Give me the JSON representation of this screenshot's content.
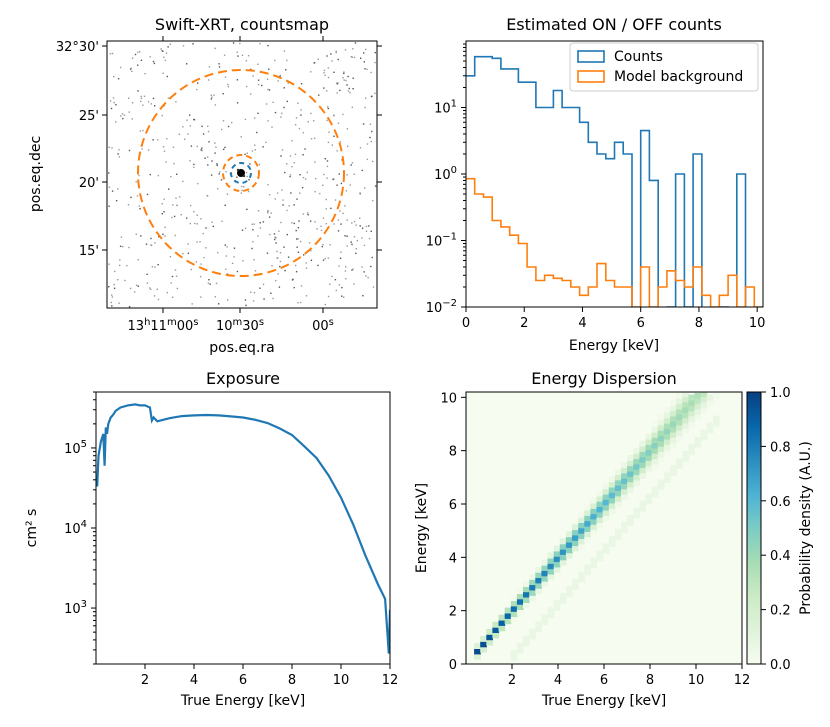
{
  "figure": {
    "panels": [
      "Swift-XRT, countsmap",
      "Estimated ON / OFF counts",
      "Exposure",
      "Energy Dispersion"
    ]
  },
  "chart_data": [
    {
      "type": "heatmap",
      "title": "Swift-XRT, countsmap",
      "xlabel": "pos.eq.ra",
      "ylabel": "pos.eq.dec",
      "x_ticks": [
        {
          "main": "13",
          "sup1": "h",
          "mid": "11",
          "sup2": "m",
          "tail": "00",
          "sup3": "s"
        },
        {
          "main": "10",
          "sup1": "m",
          "mid": "30",
          "sup2": "s",
          "tail": "",
          "sup3": ""
        },
        {
          "main": "00",
          "sup1": "s",
          "mid": "",
          "sup2": "",
          "tail": "",
          "sup3": ""
        }
      ],
      "y_ticks": [
        "32°30'",
        "25'",
        "20'",
        "15'"
      ],
      "regions": [
        {
          "name": "on-region",
          "color": "#1f77b4",
          "style": "dashed"
        },
        {
          "name": "off-inner",
          "color": "#ff7f0e",
          "style": "dashed"
        },
        {
          "name": "off-outer",
          "color": "#ff7f0e",
          "style": "dashed"
        }
      ]
    },
    {
      "type": "line",
      "drawstyle": "steps",
      "title": "Estimated ON / OFF counts",
      "xlabel": "Energy [keV]",
      "ylabel": "",
      "xlim": [
        0,
        10.2
      ],
      "ylim": [
        0.01,
        100
      ],
      "yscale": "log",
      "legend_position": "top-right",
      "x_ticks": [
        "0",
        "2",
        "4",
        "6",
        "8",
        "10"
      ],
      "y_ticks": [
        {
          "base": "10",
          "exp": "1",
          "value": 10
        },
        {
          "base": "10",
          "exp": "0",
          "value": 1
        },
        {
          "base": "10",
          "exp": "−1",
          "value": 0.1
        },
        {
          "base": "10",
          "exp": "−2",
          "value": 0.01
        }
      ],
      "bin_edges": [
        0,
        0.3,
        0.6,
        0.9,
        1.2,
        1.5,
        1.8,
        2.1,
        2.4,
        2.7,
        3.0,
        3.3,
        3.6,
        3.9,
        4.2,
        4.5,
        4.8,
        5.1,
        5.4,
        5.7,
        6.0,
        6.3,
        6.6,
        6.9,
        7.2,
        7.5,
        7.8,
        8.1,
        8.4,
        8.7,
        9.0,
        9.3,
        9.6,
        9.9,
        10.2
      ],
      "series": [
        {
          "name": "Counts",
          "color": "#1f77b4",
          "values": [
            30,
            58,
            58,
            55,
            38,
            38,
            24,
            24,
            10,
            10,
            18,
            10,
            10,
            6,
            3,
            2,
            1.7,
            3,
            2,
            0,
            4.5,
            0.8,
            0,
            0.01,
            1,
            0.01,
            2,
            0,
            0,
            0.01,
            0,
            1,
            0,
            0
          ]
        },
        {
          "name": "Model background",
          "color": "#ff7f0e",
          "values": [
            0.85,
            0.5,
            0.45,
            0.2,
            0.16,
            0.12,
            0.09,
            0.04,
            0.025,
            0.03,
            0.027,
            0.025,
            0.02,
            0.015,
            0.02,
            0.045,
            0.025,
            0.02,
            0.02,
            0.01,
            0.04,
            0.01,
            0.02,
            0.035,
            0.025,
            0.02,
            0.04,
            0.015,
            0.01,
            0.015,
            0.03,
            0.01,
            0.02,
            0.01
          ]
        }
      ]
    },
    {
      "type": "line",
      "title": "Exposure",
      "xlabel": "True Energy [keV]",
      "ylabel": "cm² s",
      "xlim": [
        0,
        12
      ],
      "ylim": [
        200,
        500000
      ],
      "yscale": "log",
      "x_ticks": [
        "2",
        "4",
        "6",
        "8",
        "10",
        "12"
      ],
      "y_ticks": [
        {
          "base": "10",
          "exp": "5",
          "value": 100000
        },
        {
          "base": "10",
          "exp": "4",
          "value": 10000
        },
        {
          "base": "10",
          "exp": "3",
          "value": 1000
        }
      ],
      "series": [
        {
          "name": "exposure",
          "color": "#1f77b4",
          "x": [
            0.05,
            0.1,
            0.2,
            0.3,
            0.35,
            0.4,
            0.45,
            0.5,
            0.6,
            0.7,
            0.8,
            1.0,
            1.3,
            1.6,
            1.8,
            2.0,
            2.2,
            2.28,
            2.35,
            2.5,
            3.0,
            3.5,
            4.0,
            4.5,
            5.0,
            5.5,
            6.0,
            6.5,
            7.0,
            7.5,
            8.0,
            8.5,
            9.0,
            9.5,
            10.0,
            10.5,
            11.0,
            11.5,
            11.8,
            11.95,
            12.0
          ],
          "values": [
            33000,
            80000,
            120000,
            150000,
            60000,
            180000,
            150000,
            200000,
            240000,
            260000,
            290000,
            320000,
            340000,
            350000,
            340000,
            340000,
            320000,
            220000,
            240000,
            215000,
            235000,
            250000,
            255000,
            258000,
            255000,
            248000,
            240000,
            225000,
            205000,
            175000,
            145000,
            105000,
            75000,
            45000,
            24000,
            11000,
            4500,
            2000,
            1300,
            270,
            950
          ]
        }
      ]
    },
    {
      "type": "heatmap",
      "title": "Energy Dispersion",
      "xlabel": "True Energy [keV]",
      "ylabel": "Energy [keV]",
      "xlim": [
        0,
        12
      ],
      "ylim": [
        0,
        10.2
      ],
      "x_ticks": [
        "2",
        "4",
        "6",
        "8",
        "10",
        "12"
      ],
      "y_ticks": [
        "0",
        "2",
        "4",
        "6",
        "8",
        "10"
      ],
      "colorbar": {
        "label": "Probability density (A.U.)",
        "ticks": [
          "0.0",
          "0.2",
          "0.4",
          "0.6",
          "0.8",
          "1.0"
        ]
      },
      "diagonal": {
        "e_start": 0.35,
        "e_end": 11.0,
        "width_growth": "increasing"
      }
    }
  ]
}
